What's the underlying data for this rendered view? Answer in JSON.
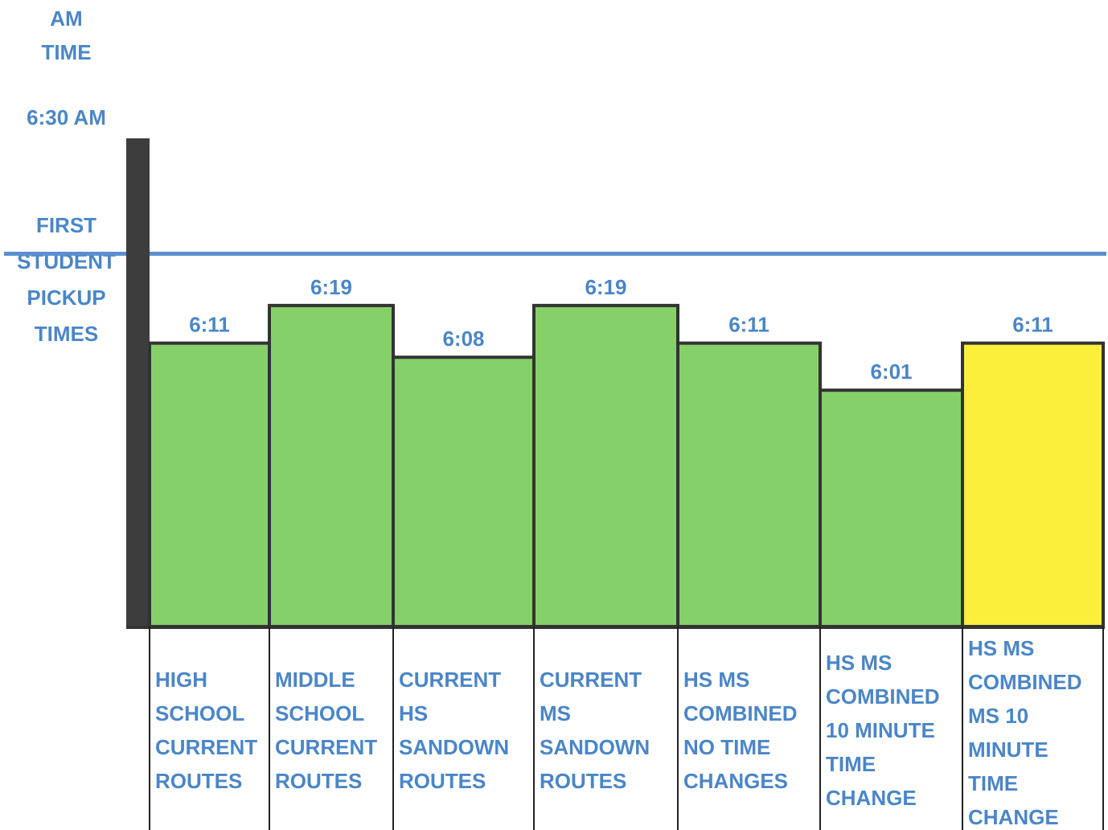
{
  "chart_data": {
    "type": "bar",
    "title": "",
    "ylabel_top": [
      "AM",
      "TIME"
    ],
    "ylabel": [
      "FIRST",
      "STUDENT",
      "PICKUP",
      "TIMES"
    ],
    "reference_line": {
      "label": "6:30 AM",
      "value_minutes": 30,
      "color": "#5b8fd0"
    },
    "categories": [
      [
        "HIGH",
        "SCHOOL",
        "CURRENT",
        "ROUTES"
      ],
      [
        "MIDDLE",
        "SCHOOL",
        "CURRENT",
        "ROUTES"
      ],
      [
        "CURRENT",
        "HS",
        "SANDOWN",
        "ROUTES"
      ],
      [
        "CURRENT",
        "MS",
        "SANDOWN",
        "ROUTES"
      ],
      [
        "HS MS",
        "COMBINED",
        "NO TIME",
        "CHANGES"
      ],
      [
        "HS MS",
        "COMBINED",
        "10 MINUTE",
        "TIME",
        "CHANGE"
      ],
      [
        "HS MS",
        "COMBINED",
        "MS 10",
        "MINUTE",
        "TIME",
        "CHANGE"
      ]
    ],
    "value_labels": [
      "6:11",
      "6:19",
      "6:08",
      "6:19",
      "6:11",
      "6:01",
      "6:11"
    ],
    "values_minutes_after_6am": [
      11,
      19,
      8,
      19,
      11,
      1,
      11
    ],
    "bar_colors": [
      "#86d06a",
      "#86d06a",
      "#86d06a",
      "#86d06a",
      "#86d06a",
      "#86d06a",
      "#fcef3c"
    ],
    "text_color": "#4a86c8"
  }
}
